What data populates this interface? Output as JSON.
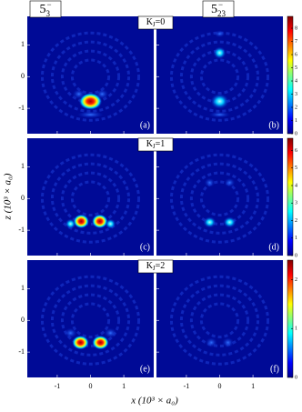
{
  "chart_data": {
    "type": "heatmap",
    "colormap": "jet",
    "xlabel": "x (10³ × a₀)",
    "ylabel": "z (10³ × a₀)",
    "column_titles": [
      {
        "base": "5",
        "sub": "3",
        "sup": "−"
      },
      {
        "base": "5",
        "sub": "23",
        "sup": "−"
      }
    ],
    "xlim": [
      -1.9,
      1.9
    ],
    "xticks": [
      -1,
      0,
      1
    ],
    "ylim": [
      -1.8,
      1.9
    ],
    "yticks": [
      1,
      0,
      -1
    ],
    "rows": [
      {
        "label": {
          "base": "K",
          "sub": "J",
          "rest": "=0"
        },
        "panel_labels": [
          "(a)",
          "(b)"
        ],
        "colorbar": {
          "lim": [
            0,
            8.9
          ],
          "ticks": [
            0,
            1,
            2,
            3,
            4,
            5,
            6,
            7,
            8
          ]
        }
      },
      {
        "label": {
          "base": "K",
          "sub": "J",
          "rest": "=1"
        },
        "panel_labels": [
          "(c)",
          "(d)"
        ],
        "colorbar": {
          "lim": [
            0,
            6.7
          ],
          "ticks": [
            0,
            1,
            2,
            3,
            4,
            5,
            6
          ]
        }
      },
      {
        "label": {
          "base": "K",
          "sub": "J",
          "rest": "=2"
        },
        "panel_labels": [
          "(e)",
          "(f)"
        ],
        "colorbar": {
          "lim": [
            0,
            2.4
          ],
          "ticks": [
            0,
            1,
            2
          ]
        }
      }
    ]
  }
}
